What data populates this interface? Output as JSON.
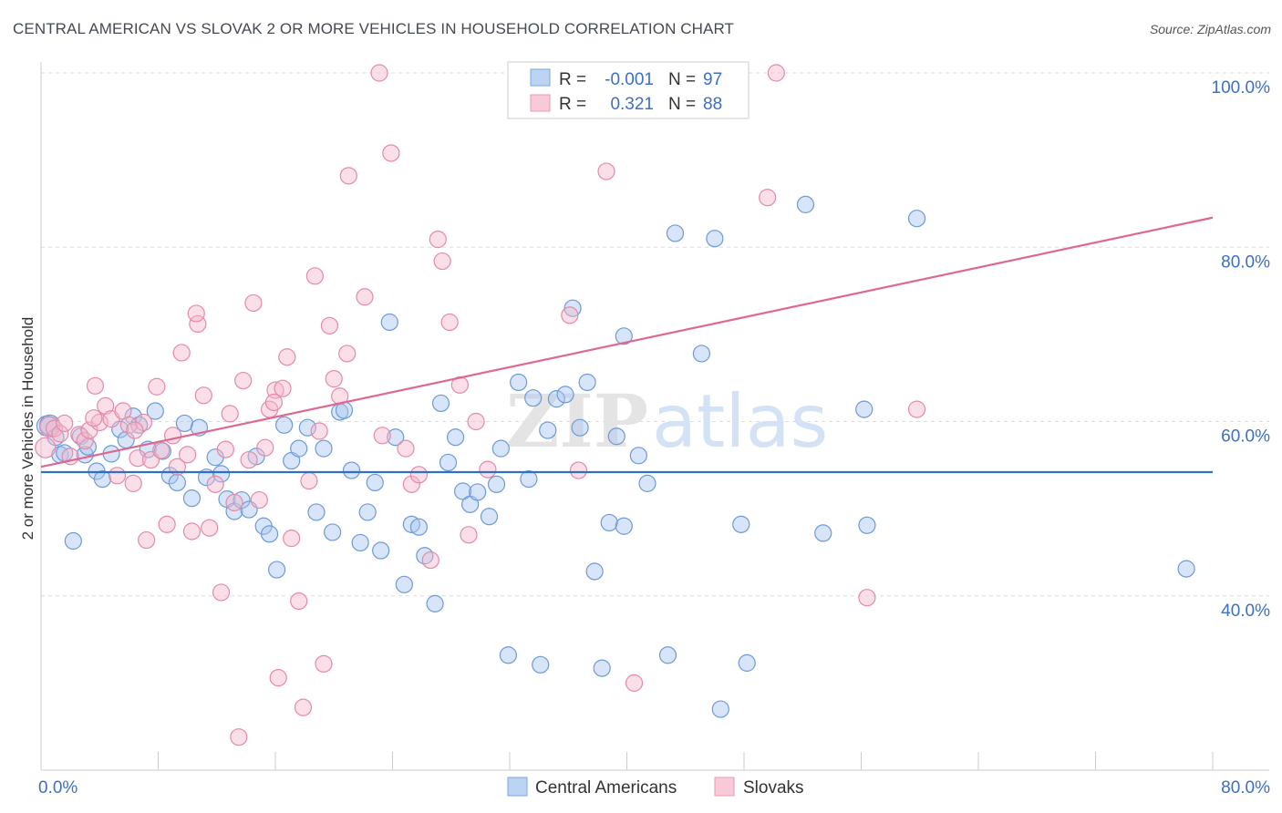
{
  "title": "CENTRAL AMERICAN VS SLOVAK 2 OR MORE VEHICLES IN HOUSEHOLD CORRELATION CHART",
  "source": "Source: ZipAtlas.com",
  "watermark": {
    "zip": "ZIP",
    "atlas": "atlas"
  },
  "legend_box": {
    "rows": [
      {
        "r_label": "R =",
        "r_value": "-0.001",
        "n_label": "N =",
        "n_value": "97"
      },
      {
        "r_label": "R =",
        "r_value": "0.321",
        "n_label": "N =",
        "n_value": "88"
      }
    ]
  },
  "bottom_legend": [
    "Central Americans",
    "Slovaks"
  ],
  "colors": {
    "central_fill": "#a9c6f0",
    "central_stroke": "#6c9ad8",
    "central_line": "#2f6fc9",
    "slovak_fill": "#f5b8cb",
    "slovak_stroke": "#e58aa6",
    "slovak_line": "#e06890",
    "accent_text": "#3a70c8",
    "grid": "#dddddd"
  },
  "chart_data": {
    "type": "scatter",
    "title": "CENTRAL AMERICAN VS SLOVAK 2 OR MORE VEHICLES IN HOUSEHOLD CORRELATION CHART",
    "xlabel": "",
    "ylabel": "2 or more Vehicles in Household",
    "xlim": [
      0,
      80
    ],
    "ylim": [
      20,
      100
    ],
    "x_tick_labels": [
      "0.0%",
      "80.0%"
    ],
    "y_tick_labels": [
      "40.0%",
      "60.0%",
      "80.0%",
      "100.0%"
    ],
    "y_ticks": [
      40,
      60,
      80,
      100
    ],
    "grid": true,
    "legend_position": "top-center",
    "series": [
      {
        "name": "Central Americans",
        "trend": [
          [
            0,
            54.2
          ],
          [
            80,
            54.2
          ]
        ],
        "points": [
          [
            0.4,
            59.5
          ],
          [
            0.6,
            59.6
          ],
          [
            1.0,
            58.2
          ],
          [
            1.3,
            56.2
          ],
          [
            1.6,
            56.4
          ],
          [
            2.2,
            46.3
          ],
          [
            2.7,
            58.3
          ],
          [
            3.0,
            56.2
          ],
          [
            3.2,
            57.1
          ],
          [
            3.8,
            54.3
          ],
          [
            4.2,
            53.4
          ],
          [
            4.8,
            56.3
          ],
          [
            5.4,
            59.1
          ],
          [
            5.8,
            57.9
          ],
          [
            6.3,
            60.6
          ],
          [
            6.7,
            59.6
          ],
          [
            7.3,
            56.8
          ],
          [
            7.8,
            61.2
          ],
          [
            8.3,
            56.6
          ],
          [
            8.8,
            53.8
          ],
          [
            9.3,
            53.0
          ],
          [
            9.8,
            59.8
          ],
          [
            10.3,
            51.2
          ],
          [
            10.8,
            59.3
          ],
          [
            11.3,
            53.6
          ],
          [
            11.9,
            55.9
          ],
          [
            12.3,
            54.0
          ],
          [
            12.7,
            51.1
          ],
          [
            13.2,
            49.7
          ],
          [
            13.7,
            51.0
          ],
          [
            14.2,
            49.9
          ],
          [
            14.7,
            56.0
          ],
          [
            15.2,
            48.0
          ],
          [
            15.6,
            47.1
          ],
          [
            16.1,
            43.0
          ],
          [
            16.6,
            59.6
          ],
          [
            17.1,
            55.5
          ],
          [
            17.6,
            56.9
          ],
          [
            18.2,
            59.3
          ],
          [
            18.8,
            49.6
          ],
          [
            19.3,
            56.9
          ],
          [
            19.9,
            47.3
          ],
          [
            20.4,
            61.1
          ],
          [
            20.7,
            61.3
          ],
          [
            21.2,
            54.4
          ],
          [
            21.8,
            46.1
          ],
          [
            22.3,
            49.6
          ],
          [
            22.8,
            53.0
          ],
          [
            23.2,
            45.2
          ],
          [
            23.8,
            71.4
          ],
          [
            24.2,
            58.2
          ],
          [
            24.8,
            41.3
          ],
          [
            25.3,
            48.2
          ],
          [
            25.8,
            47.9
          ],
          [
            26.2,
            44.6
          ],
          [
            26.9,
            39.1
          ],
          [
            27.3,
            62.1
          ],
          [
            27.8,
            55.3
          ],
          [
            28.3,
            58.2
          ],
          [
            28.8,
            52.0
          ],
          [
            29.3,
            50.5
          ],
          [
            29.8,
            51.9
          ],
          [
            30.6,
            49.1
          ],
          [
            31.1,
            52.8
          ],
          [
            31.4,
            56.9
          ],
          [
            31.9,
            33.2
          ],
          [
            32.6,
            64.5
          ],
          [
            33.3,
            53.4
          ],
          [
            33.6,
            62.7
          ],
          [
            34.1,
            32.1
          ],
          [
            34.6,
            59.0
          ],
          [
            35.2,
            62.6
          ],
          [
            35.8,
            63.1
          ],
          [
            36.3,
            73.0
          ],
          [
            36.8,
            59.3
          ],
          [
            37.3,
            64.5
          ],
          [
            37.8,
            42.8
          ],
          [
            38.3,
            31.7
          ],
          [
            38.8,
            48.4
          ],
          [
            39.3,
            58.3
          ],
          [
            39.8,
            48.0
          ],
          [
            40.8,
            56.1
          ],
          [
            41.4,
            52.9
          ],
          [
            42.8,
            33.2
          ],
          [
            43.3,
            81.6
          ],
          [
            45.1,
            67.8
          ],
          [
            46.0,
            81.0
          ],
          [
            46.4,
            27.0
          ],
          [
            47.8,
            48.2
          ],
          [
            48.2,
            32.3
          ],
          [
            52.2,
            84.9
          ],
          [
            53.4,
            47.2
          ],
          [
            56.2,
            61.4
          ],
          [
            56.4,
            48.1
          ],
          [
            59.8,
            83.3
          ],
          [
            78.2,
            43.1
          ],
          [
            39.8,
            69.8
          ]
        ]
      },
      {
        "name": "Slovaks",
        "trend": [
          [
            0,
            54.8
          ],
          [
            80,
            83.4
          ]
        ],
        "points": [
          [
            0.3,
            57.0
          ],
          [
            0.6,
            59.4
          ],
          [
            0.9,
            59.2
          ],
          [
            1.3,
            58.6
          ],
          [
            1.6,
            59.8
          ],
          [
            2.0,
            56.0
          ],
          [
            2.6,
            58.5
          ],
          [
            3.0,
            57.8
          ],
          [
            3.3,
            59.0
          ],
          [
            3.7,
            64.1
          ],
          [
            4.0,
            59.9
          ],
          [
            4.4,
            61.8
          ],
          [
            4.8,
            60.3
          ],
          [
            5.2,
            53.8
          ],
          [
            5.6,
            61.2
          ],
          [
            6.0,
            59.6
          ],
          [
            6.3,
            52.9
          ],
          [
            6.6,
            55.8
          ],
          [
            7.0,
            59.9
          ],
          [
            7.2,
            46.4
          ],
          [
            7.5,
            55.6
          ],
          [
            7.9,
            64.0
          ],
          [
            8.2,
            56.7
          ],
          [
            8.6,
            48.2
          ],
          [
            9.0,
            58.4
          ],
          [
            9.3,
            54.8
          ],
          [
            9.6,
            67.9
          ],
          [
            10.0,
            56.2
          ],
          [
            10.3,
            47.4
          ],
          [
            10.7,
            71.2
          ],
          [
            11.1,
            63.0
          ],
          [
            11.5,
            47.8
          ],
          [
            11.9,
            52.8
          ],
          [
            12.3,
            40.4
          ],
          [
            12.6,
            56.8
          ],
          [
            12.9,
            60.9
          ],
          [
            13.2,
            50.7
          ],
          [
            13.5,
            23.8
          ],
          [
            13.8,
            64.7
          ],
          [
            14.2,
            55.6
          ],
          [
            14.5,
            73.6
          ],
          [
            14.9,
            51.0
          ],
          [
            15.3,
            57.0
          ],
          [
            15.6,
            61.4
          ],
          [
            16.0,
            63.6
          ],
          [
            16.2,
            30.6
          ],
          [
            16.5,
            63.8
          ],
          [
            16.8,
            67.4
          ],
          [
            17.1,
            46.6
          ],
          [
            17.6,
            39.4
          ],
          [
            17.9,
            27.2
          ],
          [
            18.3,
            53.2
          ],
          [
            18.7,
            76.7
          ],
          [
            19.0,
            58.9
          ],
          [
            19.3,
            32.2
          ],
          [
            19.7,
            71.0
          ],
          [
            20.0,
            64.9
          ],
          [
            20.4,
            62.9
          ],
          [
            20.9,
            67.8
          ],
          [
            21.0,
            88.2
          ],
          [
            22.1,
            74.3
          ],
          [
            23.3,
            58.4
          ],
          [
            23.9,
            90.8
          ],
          [
            24.9,
            56.9
          ],
          [
            25.3,
            52.8
          ],
          [
            25.8,
            53.9
          ],
          [
            26.6,
            44.1
          ],
          [
            27.1,
            80.9
          ],
          [
            27.4,
            78.4
          ],
          [
            27.9,
            71.4
          ],
          [
            28.6,
            64.2
          ],
          [
            29.2,
            47.0
          ],
          [
            29.7,
            60.0
          ],
          [
            30.5,
            54.5
          ],
          [
            36.1,
            72.2
          ],
          [
            36.7,
            54.4
          ],
          [
            38.1,
            100.0
          ],
          [
            38.6,
            88.7
          ],
          [
            40.5,
            30.0
          ],
          [
            49.6,
            85.7
          ],
          [
            50.2,
            100.0
          ],
          [
            56.4,
            39.8
          ],
          [
            59.8,
            61.4
          ],
          [
            23.1,
            100.0
          ],
          [
            10.6,
            72.4
          ],
          [
            15.9,
            62.2
          ],
          [
            3.6,
            60.4
          ],
          [
            6.4,
            59.0
          ]
        ]
      }
    ]
  }
}
